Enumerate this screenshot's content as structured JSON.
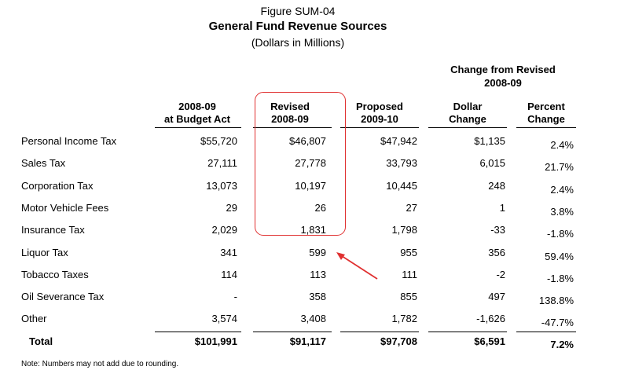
{
  "figure": {
    "label": "Figure SUM-04",
    "title": "General Fund Revenue Sources",
    "subtitle": "(Dollars in Millions)"
  },
  "group_header": {
    "line1": "Change from Revised",
    "line2": "2008-09"
  },
  "columns": [
    {
      "line1": "2008-09",
      "line2": "at Budget Act"
    },
    {
      "line1": "Revised",
      "line2": "2008-09"
    },
    {
      "line1": "Proposed",
      "line2": "2009-10"
    },
    {
      "line1": "Dollar",
      "line2": "Change"
    },
    {
      "line1": "Percent",
      "line2": "Change"
    }
  ],
  "rows": [
    {
      "label": "Personal Income Tax",
      "budget_act": "$55,720",
      "revised": "$46,807",
      "proposed": "$47,942",
      "dollar_change": "$1,135",
      "percent_change": "2.4%"
    },
    {
      "label": "Sales Tax",
      "budget_act": "27,111",
      "revised": "27,778",
      "proposed": "33,793",
      "dollar_change": "6,015",
      "percent_change": "21.7%"
    },
    {
      "label": "Corporation Tax",
      "budget_act": "13,073",
      "revised": "10,197",
      "proposed": "10,445",
      "dollar_change": "248",
      "percent_change": "2.4%"
    },
    {
      "label": "Motor Vehicle Fees",
      "budget_act": "29",
      "revised": "26",
      "proposed": "27",
      "dollar_change": "1",
      "percent_change": "3.8%"
    },
    {
      "label": "Insurance Tax",
      "budget_act": "2,029",
      "revised": "1,831",
      "proposed": "1,798",
      "dollar_change": "-33",
      "percent_change": "-1.8%"
    },
    {
      "label": "Liquor Tax",
      "budget_act": "341",
      "revised": "599",
      "proposed": "955",
      "dollar_change": "356",
      "percent_change": "59.4%"
    },
    {
      "label": "Tobacco Taxes",
      "budget_act": "114",
      "revised": "113",
      "proposed": "111",
      "dollar_change": "-2",
      "percent_change": "-1.8%"
    },
    {
      "label": "Oil Severance Tax",
      "budget_act": "-",
      "revised": "358",
      "proposed": "855",
      "dollar_change": "497",
      "percent_change": "138.8%"
    },
    {
      "label": "Other",
      "budget_act": "3,574",
      "revised": "3,408",
      "proposed": "1,782",
      "dollar_change": "-1,626",
      "percent_change": "-47.7%"
    }
  ],
  "total": {
    "label": "Total",
    "budget_act": "$101,991",
    "revised": "$91,117",
    "proposed": "$97,708",
    "dollar_change": "$6,591",
    "percent_change": "7.2%"
  },
  "note": "Note: Numbers may not add due to rounding.",
  "annotation": {
    "highlight_color": "#e03030",
    "highlighted_column": "Revised 2008-09",
    "arrow_target": "599"
  }
}
